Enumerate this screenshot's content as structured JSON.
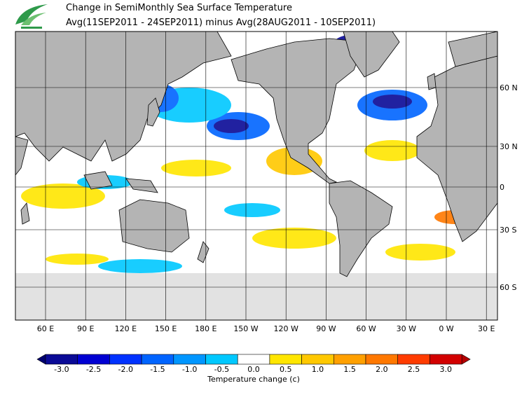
{
  "header": {
    "title": "Change in SemiMonthly Sea Surface Temperature",
    "subtitle": "Avg(11SEP2011 - 24SEP2011) minus Avg(28AUG2011 - 10SEP2011)"
  },
  "map": {
    "lon_labels": [
      "60 E",
      "90 E",
      "120 E",
      "150 E",
      "180 E",
      "150 W",
      "120 W",
      "90 W",
      "60 W",
      "30 W",
      "0 W",
      "30 E"
    ],
    "lat_labels": [
      "60 N",
      "30 N",
      "0",
      "30 S",
      "60 S"
    ]
  },
  "colorbar": {
    "label": "Temperature change  (c)",
    "ticks": [
      {
        "value": -3,
        "label": "-3.0"
      },
      {
        "value": -2.5,
        "label": "-2.5"
      },
      {
        "value": -2,
        "label": "-2.0"
      },
      {
        "value": -1.5,
        "label": "-1.5"
      },
      {
        "value": -1,
        "label": "-1.0"
      },
      {
        "value": -0.5,
        "label": "-0.5"
      },
      {
        "value": 0,
        "label": "0.0"
      },
      {
        "value": 0.5,
        "label": "0.5"
      },
      {
        "value": 1,
        "label": "1.0"
      },
      {
        "value": 1.5,
        "label": "1.5"
      },
      {
        "value": 2,
        "label": "2.0"
      },
      {
        "value": 2.5,
        "label": "2.5"
      },
      {
        "value": 3,
        "label": "3.0"
      }
    ],
    "colors": [
      "#0a0a96",
      "#0000d2",
      "#0032ff",
      "#0064ff",
      "#0096ff",
      "#00c8ff",
      "#ffffff",
      "#ffe600",
      "#ffc800",
      "#ffa000",
      "#ff7800",
      "#ff3c00",
      "#d20000"
    ],
    "low_color": "#000070",
    "high_color": "#b40000"
  }
}
